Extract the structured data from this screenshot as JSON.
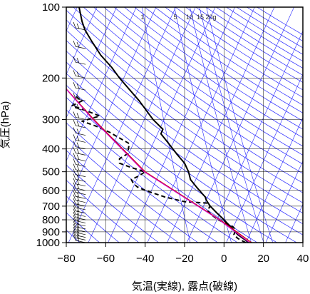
{
  "chart_data": {
    "type": "line",
    "xlabel": "気温(実線), 露点(破線)",
    "ylabel": "気圧(hPa)",
    "xlim": [
      -80,
      40
    ],
    "ylim": [
      1000,
      100
    ],
    "y_scale": "log",
    "x_ticks": [
      "−80",
      "−60",
      "−40",
      "−20",
      "0",
      "20",
      "40"
    ],
    "x_tick_values": [
      -80,
      -60,
      -40,
      -20,
      0,
      20,
      40
    ],
    "y_ticks": [
      "100",
      "200",
      "300",
      "400",
      "500",
      "600",
      "700",
      "800",
      "900",
      "1000"
    ],
    "y_tick_values": [
      100,
      200,
      300,
      400,
      500,
      600,
      700,
      800,
      900,
      1000
    ],
    "mixing_ratio_labels": [
      "1",
      "5",
      "10",
      "15",
      "20g"
    ],
    "mixing_ratio_values": [
      1,
      5,
      10,
      15,
      20
    ],
    "grid": true,
    "colors": {
      "temperature": "#000000",
      "dewpoint": "#000000",
      "parcel_path": "#cc0000",
      "lifted_path": "#cc00cc",
      "adiabats": "#2323ff",
      "isotherms": "#2323ff",
      "mixing_ratio": "#2323ff",
      "grid": "#000000"
    },
    "series": [
      {
        "style": "solid",
        "points": [
          {
            "p": 1000,
            "t": 12.5
          },
          {
            "p": 970,
            "t": 10.5
          },
          {
            "p": 925,
            "t": 7.0
          },
          {
            "p": 850,
            "t": 3.0
          },
          {
            "p": 800,
            "t": 0.0
          },
          {
            "p": 750,
            "t": -3.5
          },
          {
            "p": 700,
            "t": -7.0
          },
          {
            "p": 660,
            "t": -9.0
          },
          {
            "p": 640,
            "t": -9.5
          },
          {
            "p": 620,
            "t": -11.0
          },
          {
            "p": 580,
            "t": -14.0
          },
          {
            "p": 540,
            "t": -17.0
          },
          {
            "p": 500,
            "t": -18.0
          },
          {
            "p": 460,
            "t": -20.0
          },
          {
            "p": 420,
            "t": -24.0
          },
          {
            "p": 380,
            "t": -28.0
          },
          {
            "p": 345,
            "t": -32.0
          },
          {
            "p": 330,
            "t": -31.0
          },
          {
            "p": 300,
            "t": -36.0
          },
          {
            "p": 250,
            "t": -43.0
          },
          {
            "p": 200,
            "t": -53.0
          },
          {
            "p": 180,
            "t": -57.0
          },
          {
            "p": 160,
            "t": -62.5
          },
          {
            "p": 140,
            "t": -67.0
          },
          {
            "p": 125,
            "t": -70.5
          },
          {
            "p": 115,
            "t": -72.0
          },
          {
            "p": 100,
            "t": -73.5
          }
        ]
      },
      {
        "style": "dashed",
        "points": [
          {
            "p": 1000,
            "t": 11.0
          },
          {
            "p": 960,
            "t": 7.0
          },
          {
            "p": 925,
            "t": 5.0
          },
          {
            "p": 880,
            "t": 6.0
          },
          {
            "p": 850,
            "t": 4.0
          },
          {
            "p": 800,
            "t": -3.0
          },
          {
            "p": 760,
            "t": -6.5
          },
          {
            "p": 730,
            "t": -8.5
          },
          {
            "p": 700,
            "t": -7.0
          },
          {
            "p": 680,
            "t": -8.0
          },
          {
            "p": 670,
            "t": -20.0
          },
          {
            "p": 640,
            "t": -30.0
          },
          {
            "p": 600,
            "t": -40.0
          },
          {
            "p": 580,
            "t": -44.0
          },
          {
            "p": 560,
            "t": -46.0
          },
          {
            "p": 540,
            "t": -47.0
          },
          {
            "p": 520,
            "t": -43.0
          },
          {
            "p": 500,
            "t": -40.0
          },
          {
            "p": 480,
            "t": -47.0
          },
          {
            "p": 460,
            "t": -53.0
          },
          {
            "p": 440,
            "t": -53.0
          },
          {
            "p": 420,
            "t": -49.0
          },
          {
            "p": 380,
            "t": -48.0
          },
          {
            "p": 340,
            "t": -58.0
          },
          {
            "p": 320,
            "t": -65.0
          },
          {
            "p": 305,
            "t": -72.0
          },
          {
            "p": 290,
            "t": -63.0
          },
          {
            "p": 275,
            "t": -70.0
          },
          {
            "p": 262,
            "t": -77.0
          },
          {
            "p": 250,
            "t": -72.0
          },
          {
            "p": 240,
            "t": -75.0
          }
        ]
      },
      {
        "style": "solid-red",
        "points": [
          {
            "p": 1000,
            "t": 14.0
          },
          {
            "p": 800,
            "t": -2.0
          },
          {
            "p": 500,
            "t": -40.0
          },
          {
            "p": 300,
            "t": -66.0
          },
          {
            "p": 200,
            "t": -85.0
          }
        ]
      },
      {
        "style": "solid-purple",
        "points": [
          {
            "p": 1000,
            "t": 13.0
          },
          {
            "p": 800,
            "t": -2.5
          },
          {
            "p": 500,
            "t": -40.5
          },
          {
            "p": 300,
            "t": -66.5
          },
          {
            "p": 200,
            "t": -85.0
          }
        ]
      }
    ],
    "wind_levels": [
      1000,
      975,
      950,
      925,
      900,
      875,
      850,
      825,
      800,
      775,
      750,
      725,
      700,
      675,
      650,
      625,
      600,
      575,
      550,
      525,
      500,
      475,
      450,
      425,
      400,
      375,
      350,
      325,
      300,
      275,
      250,
      225,
      200,
      175,
      150,
      125,
      100
    ]
  }
}
